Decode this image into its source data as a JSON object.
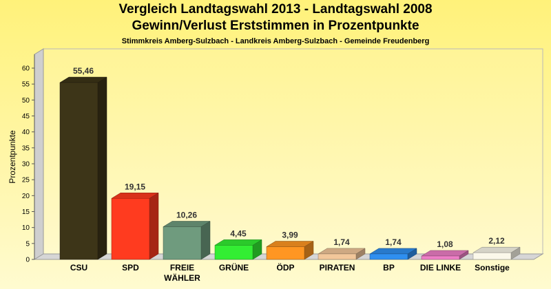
{
  "header": {
    "title": "Vergleich Landtagswahl 2013 - Landtagswahl 2008",
    "subtitle": "Gewinn/Verlust Erststimmen in Prozentpunkte",
    "subsubtitle": "Stimmkreis Amberg-Sulzbach - Landkreis Amberg-Sulzbach - Gemeinde Freudenberg"
  },
  "chart_data": {
    "type": "bar",
    "title": "Vergleich Landtagswahl 2013 - Landtagswahl 2008",
    "subtitle": "Gewinn/Verlust Erststimmen in Prozentpunkte",
    "ylabel": "Prozentpunkte",
    "xlabel": "",
    "ylim": [
      0,
      60
    ],
    "yticks": [
      0,
      5,
      10,
      15,
      20,
      25,
      30,
      35,
      40,
      45,
      50,
      55,
      60
    ],
    "grid": false,
    "categories": [
      [
        "CSU"
      ],
      [
        "SPD"
      ],
      [
        "FREIE",
        "WÄHLER"
      ],
      [
        "GRÜNE"
      ],
      [
        "ÖDP"
      ],
      [
        "PIRATEN"
      ],
      [
        "BP"
      ],
      [
        "DIE LINKE"
      ],
      [
        "Sonstige"
      ]
    ],
    "values": [
      55.46,
      19.15,
      10.26,
      4.45,
      3.99,
      1.74,
      1.74,
      1.08,
      2.12
    ],
    "value_labels": [
      "55,46",
      "19,15",
      "10,26",
      "4,45",
      "3,99",
      "1,74",
      "1,74",
      "1,08",
      "2,12"
    ],
    "colors": [
      "#3d3518",
      "#ff3b1f",
      "#6f9b7e",
      "#33ee33",
      "#ff9622",
      "#f2c79a",
      "#2f8ff0",
      "#ee7fc6",
      "#fbf8ea"
    ]
  }
}
